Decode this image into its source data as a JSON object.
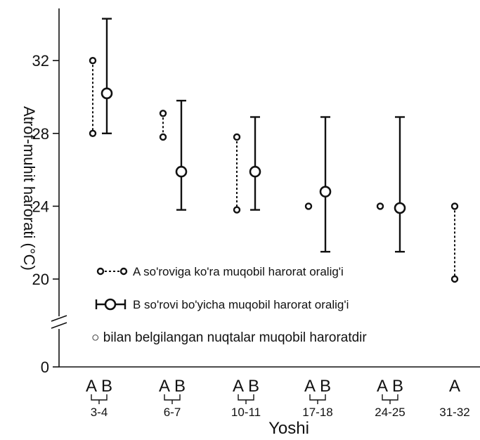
{
  "chart_data": {
    "type": "range",
    "ylabel": "Atrof-muhit harorati (°C)",
    "xlabel": "Yoshi",
    "y_ticks": [
      "0",
      "20",
      "24",
      "28",
      "32"
    ],
    "y_axis_break": true,
    "categories": [
      "3-4",
      "6-7",
      "10-11",
      "17-18",
      "24-25",
      "31-32"
    ],
    "series": [
      {
        "name": "A",
        "data": [
          {
            "category": "3-4",
            "low": 28,
            "high": 32
          },
          {
            "category": "6-7",
            "low": 27.8,
            "high": 29.1
          },
          {
            "category": "10-11",
            "low": 23.8,
            "high": 27.8
          },
          {
            "category": "17-18",
            "low": 24,
            "high": 24
          },
          {
            "category": "24-25",
            "low": 24,
            "high": 24
          },
          {
            "category": "31-32",
            "low": 20,
            "high": 24
          }
        ]
      },
      {
        "name": "B",
        "data": [
          {
            "category": "3-4",
            "low": 28,
            "high": 34.3,
            "point": 30.2
          },
          {
            "category": "6-7",
            "low": 23.8,
            "high": 29.8,
            "point": 25.9
          },
          {
            "category": "10-11",
            "low": 23.8,
            "high": 28.9,
            "point": 25.9
          },
          {
            "category": "17-18",
            "low": 21.5,
            "high": 28.9,
            "point": 24.8
          },
          {
            "category": "24-25",
            "low": 21.5,
            "high": 28.9,
            "point": 23.9
          },
          {
            "category": "31-32",
            "low": null,
            "high": null,
            "point": null
          }
        ]
      }
    ],
    "legend": [
      {
        "key": "A",
        "label": "A so'roviga ko'ra muqobil harorat oralig'i"
      },
      {
        "key": "B",
        "label": "B so'rovi bo'yicha muqobil harorat oralig'i"
      },
      {
        "key": "note",
        "label": "○ bilan belgilangan nuqtalar muqobil haroratdir"
      }
    ]
  }
}
